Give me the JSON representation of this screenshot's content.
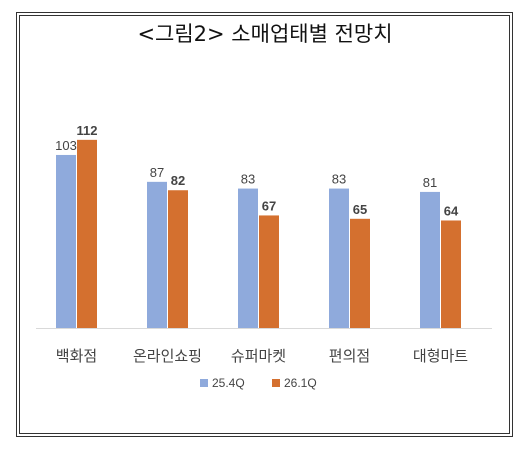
{
  "title": "<그림2> 소매업태별 전망치",
  "chart_data": {
    "type": "bar",
    "title": "<그림2> 소매업태별 전망치",
    "categories": [
      "백화점",
      "온라인쇼핑",
      "슈퍼마켓",
      "편의점",
      "대형마트"
    ],
    "series": [
      {
        "name": "25.4Q",
        "values": [
          103,
          87,
          83,
          83,
          81
        ],
        "color": "#8faadc",
        "label_bold": false
      },
      {
        "name": "26.1Q",
        "values": [
          112,
          82,
          67,
          65,
          64
        ],
        "color": "#d4702f",
        "label_bold": true
      }
    ],
    "ylim": [
      0,
      120
    ],
    "grid": false,
    "legend_position": "bottom"
  }
}
